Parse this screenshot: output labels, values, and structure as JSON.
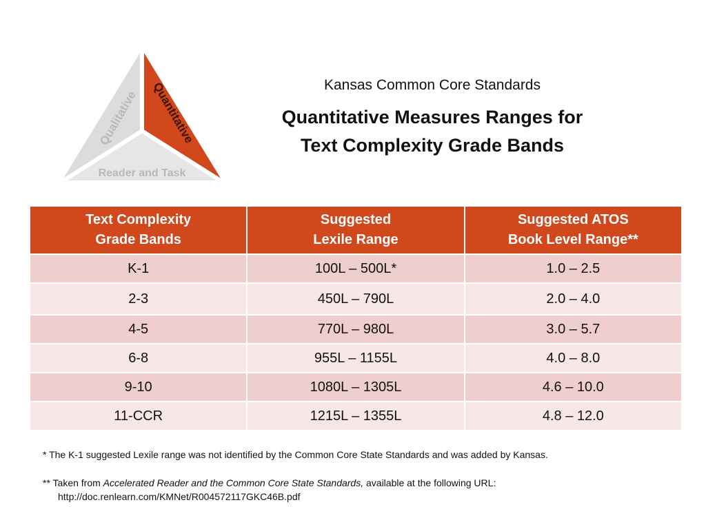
{
  "logo": {
    "qualitative": "Qualitative",
    "quantitative": "Quantitative",
    "reader_task": "Reader and Task",
    "colors": {
      "accent": "#d0481c",
      "gray": "#dcdcdc",
      "gray_text": "#b8b8b8"
    }
  },
  "header": {
    "subtitle": "Kansas Common Core Standards",
    "title_line1": "Quantitative Measures Ranges for",
    "title_line2": "Text Complexity Grade Bands"
  },
  "table": {
    "columns": [
      {
        "line1": "Text Complexity",
        "line2": "Grade Bands"
      },
      {
        "line1": "Suggested",
        "line2": "Lexile Range"
      },
      {
        "line1": "Suggested ATOS",
        "line2": "Book Level Range**"
      }
    ],
    "rows": [
      [
        "K-1",
        "100L – 500L*",
        "1.0 – 2.5"
      ],
      [
        "2-3",
        "450L – 790L",
        "2.0 – 4.0"
      ],
      [
        "4-5",
        "770L – 980L",
        "3.0 – 5.7"
      ],
      [
        "6-8",
        "955L – 1155L",
        "4.0 – 8.0"
      ],
      [
        "9-10",
        "1080L – 1305L",
        "4.6 – 10.0"
      ],
      [
        "11-CCR",
        "1215L – 1355L",
        "4.8 – 12.0"
      ]
    ]
  },
  "footnotes": {
    "note1": "* The K-1 suggested Lexile range was not identified by the Common Core State Standards and was added by Kansas.",
    "note2_prefix": "** Taken from ",
    "note2_italic": "Accelerated Reader and the Common Core State Standards,",
    "note2_suffix": " available at the following URL:",
    "note2_url": "http://doc.renlearn.com/KMNet/R004572117GKC46B.pdf"
  }
}
